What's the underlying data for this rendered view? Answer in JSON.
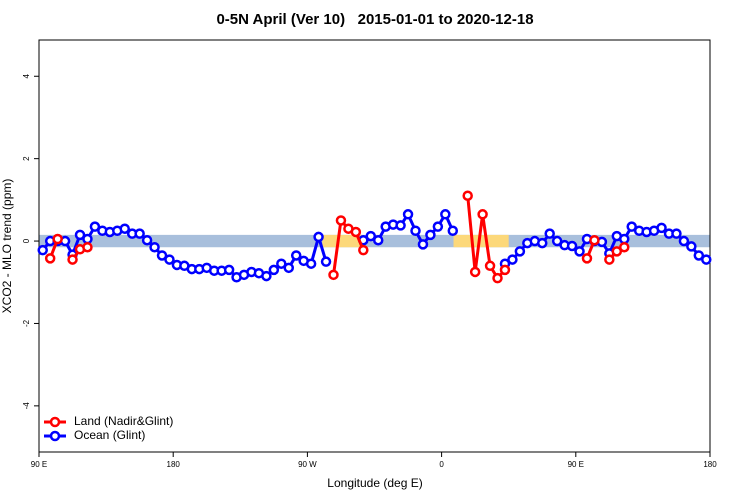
{
  "chart_data": {
    "type": "line",
    "title": "0-5N April (Ver 10)   2015-01-01 to 2020-12-18",
    "xlabel": "Longitude (deg E)",
    "ylabel": "XCO2 - MLO trend (ppm)",
    "xlim": [
      90,
      540
    ],
    "ylim": [
      -5.12,
      4.88
    ],
    "xticks": [
      {
        "value": 90,
        "label": "90 E"
      },
      180,
      {
        "value": 270,
        "label": "90 W"
      },
      {
        "value": 360,
        "label": "0"
      },
      {
        "value": 450,
        "label": "90 E"
      },
      {
        "value": 540,
        "label": "180"
      }
    ],
    "yticks": [
      -4,
      -2,
      0,
      2,
      4
    ],
    "legend_position": "bottom-left",
    "band": {
      "ymin": -0.15,
      "ymax": 0.15,
      "color": "#a8bfdc",
      "land_color": "#fcd87a",
      "land_ranges": [
        [
          280,
          307
        ],
        [
          368,
          405
        ]
      ]
    },
    "x": [
      92.5,
      97.5,
      102.5,
      107.5,
      112.5,
      117.5,
      122.5,
      127.5,
      132.5,
      137.5,
      142.5,
      147.5,
      152.5,
      157.5,
      162.5,
      167.5,
      172.5,
      177.5,
      182.5,
      187.5,
      192.5,
      197.5,
      202.5,
      207.5,
      212.5,
      217.5,
      222.5,
      227.5,
      232.5,
      237.5,
      242.5,
      247.5,
      252.5,
      257.5,
      262.5,
      267.5,
      272.5,
      277.5,
      282.5,
      287.5,
      292.5,
      297.5,
      302.5,
      307.5,
      312.5,
      317.5,
      322.5,
      327.5,
      332.5,
      337.5,
      342.5,
      347.5,
      352.5,
      357.5,
      362.5,
      367.5,
      372.5,
      377.5,
      382.5,
      387.5,
      392.5,
      397.5,
      402.5,
      407.5,
      412.5,
      417.5,
      422.5,
      427.5,
      432.5,
      437.5,
      442.5,
      447.5,
      452.5,
      457.5,
      462.5,
      467.5,
      472.5,
      477.5,
      482.5,
      487.5,
      492.5,
      497.5,
      502.5,
      507.5,
      512.5,
      517.5,
      522.5,
      527.5,
      532.5,
      537.5
    ],
    "series": [
      {
        "name": "Ocean (Glint)",
        "color": "#0000ff",
        "values": [
          -0.22,
          0.0,
          0.0,
          0.0,
          -0.33,
          0.15,
          0.05,
          0.35,
          0.25,
          0.22,
          0.25,
          0.3,
          0.18,
          0.18,
          0.02,
          -0.15,
          -0.35,
          -0.45,
          -0.58,
          -0.6,
          -0.68,
          -0.68,
          -0.65,
          -0.72,
          -0.72,
          -0.7,
          -0.88,
          -0.82,
          -0.75,
          -0.78,
          -0.85,
          -0.7,
          -0.55,
          -0.65,
          -0.35,
          -0.48,
          -0.55,
          0.1,
          -0.5,
          null,
          null,
          null,
          null,
          0.02,
          0.12,
          0.02,
          0.35,
          0.4,
          0.38,
          0.65,
          0.25,
          -0.08,
          0.15,
          0.35,
          0.65,
          0.25,
          null,
          null,
          null,
          null,
          null,
          null,
          -0.55,
          -0.45,
          -0.25,
          -0.05,
          0.0,
          -0.05,
          0.18,
          0.0,
          -0.1,
          -0.12,
          -0.25,
          0.05,
          0.0,
          -0.02,
          -0.3,
          0.12,
          0.05,
          0.35,
          0.25,
          0.22,
          0.25,
          0.32,
          0.18,
          0.18,
          0.0,
          -0.13,
          -0.35,
          -0.45
        ]
      },
      {
        "name": "Land (Nadir&Glint)",
        "color": "#ff0000",
        "values": [
          null,
          -0.42,
          0.05,
          null,
          -0.45,
          -0.2,
          -0.15,
          null,
          null,
          null,
          null,
          null,
          null,
          null,
          null,
          null,
          null,
          null,
          null,
          null,
          null,
          null,
          null,
          null,
          null,
          null,
          null,
          null,
          null,
          null,
          null,
          null,
          null,
          null,
          null,
          null,
          null,
          null,
          null,
          -0.82,
          0.5,
          0.3,
          0.22,
          -0.22,
          null,
          null,
          null,
          null,
          null,
          null,
          null,
          null,
          null,
          null,
          null,
          null,
          null,
          1.1,
          -0.75,
          0.65,
          -0.6,
          -0.9,
          -0.7,
          null,
          null,
          null,
          null,
          null,
          null,
          null,
          null,
          null,
          null,
          -0.42,
          0.02,
          null,
          -0.45,
          -0.25,
          -0.15,
          null,
          null,
          null,
          null,
          null,
          null,
          null,
          null,
          null,
          null,
          null
        ]
      }
    ]
  }
}
